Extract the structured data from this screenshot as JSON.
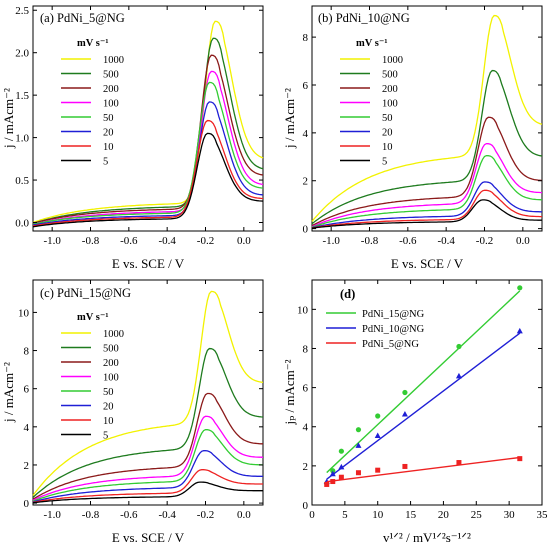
{
  "chart_data": [
    {
      "id": "a",
      "type": "line",
      "title": "(a) PdNi_5@NG",
      "xlabel": "E vs. SCE / V",
      "ylabel": "j / mAcm⁻²",
      "xlim": [
        -1.1,
        0.1
      ],
      "ylim": [
        -0.1,
        2.55
      ],
      "xticks": [
        -1.0,
        -0.8,
        -0.6,
        -0.4,
        -0.2,
        0.0
      ],
      "xtick_labels": [
        "-1.0",
        "-0.8",
        "-0.6",
        "-0.4",
        "-0.2",
        "0.0"
      ],
      "yticks": [
        0.0,
        0.5,
        1.0,
        1.5,
        2.0,
        2.5
      ],
      "ytick_labels": [
        "0.0",
        "0.5",
        "1.0",
        "1.5",
        "2.0",
        "2.5"
      ],
      "legend_title": "mV s⁻¹",
      "legend_position": "upper-left",
      "series": [
        {
          "name": "1000",
          "color": "#f2f200",
          "y_at_start": 0.0,
          "y_plateau": 0.24,
          "peak_x": -0.15,
          "peak_y": 2.37,
          "y_end": 0.74
        },
        {
          "name": "500",
          "color": "#1e7b1e",
          "y_at_start": -0.01,
          "y_plateau": 0.2,
          "peak_x": -0.16,
          "peak_y": 2.17,
          "y_end": 0.62
        },
        {
          "name": "200",
          "color": "#8b1a1a",
          "y_at_start": -0.01,
          "y_plateau": 0.17,
          "peak_x": -0.17,
          "peak_y": 1.97,
          "y_end": 0.55
        },
        {
          "name": "100",
          "color": "#ff00ff",
          "y_at_start": -0.02,
          "y_plateau": 0.14,
          "peak_x": -0.17,
          "peak_y": 1.78,
          "y_end": 0.44
        },
        {
          "name": "50",
          "color": "#33cc33",
          "y_at_start": -0.02,
          "y_plateau": 0.12,
          "peak_x": -0.18,
          "peak_y": 1.65,
          "y_end": 0.4
        },
        {
          "name": "20",
          "color": "#1f1fd6",
          "y_at_start": -0.03,
          "y_plateau": 0.09,
          "peak_x": -0.18,
          "peak_y": 1.42,
          "y_end": 0.32
        },
        {
          "name": "10",
          "color": "#ee2222",
          "y_at_start": -0.04,
          "y_plateau": 0.07,
          "peak_x": -0.19,
          "peak_y": 1.2,
          "y_end": 0.28
        },
        {
          "name": "5",
          "color": "#000000",
          "y_at_start": -0.05,
          "y_plateau": 0.05,
          "peak_x": -0.19,
          "peak_y": 1.05,
          "y_end": 0.25
        }
      ]
    },
    {
      "id": "b",
      "type": "line",
      "title": "(b) PdNi_10@NG",
      "xlabel": "E vs. SCE / V",
      "ylabel": "j / mAcm⁻²",
      "xlim": [
        -1.1,
        0.1
      ],
      "ylim": [
        -0.1,
        9.3
      ],
      "xticks": [
        -1.0,
        -0.8,
        -0.6,
        -0.4,
        -0.2,
        0.0
      ],
      "xtick_labels": [
        "-1.0",
        "-0.8",
        "-0.6",
        "-0.4",
        "-0.2",
        "0.0"
      ],
      "yticks": [
        0,
        2,
        4,
        6,
        8
      ],
      "ytick_labels": [
        "0",
        "2",
        "4",
        "6",
        "8"
      ],
      "legend_title": "mV s⁻¹",
      "legend_position": "upper-left",
      "series": [
        {
          "name": "1000",
          "color": "#f2f200",
          "y_at_start": 0.3,
          "y_plateau": 3.2,
          "peak_x": -0.15,
          "peak_y": 8.9,
          "y_end": 4.3
        },
        {
          "name": "500",
          "color": "#1e7b1e",
          "y_at_start": 0.2,
          "y_plateau": 2.1,
          "peak_x": -0.16,
          "peak_y": 6.6,
          "y_end": 3.0
        },
        {
          "name": "200",
          "color": "#8b1a1a",
          "y_at_start": 0.12,
          "y_plateau": 1.4,
          "peak_x": -0.18,
          "peak_y": 4.65,
          "y_end": 2.0
        },
        {
          "name": "100",
          "color": "#ff00ff",
          "y_at_start": 0.08,
          "y_plateau": 1.1,
          "peak_x": -0.19,
          "peak_y": 3.55,
          "y_end": 1.5
        },
        {
          "name": "50",
          "color": "#33cc33",
          "y_at_start": 0.06,
          "y_plateau": 0.85,
          "peak_x": -0.19,
          "peak_y": 3.05,
          "y_end": 1.2
        },
        {
          "name": "20",
          "color": "#1f1fd6",
          "y_at_start": 0.04,
          "y_plateau": 0.55,
          "peak_x": -0.2,
          "peak_y": 1.95,
          "y_end": 0.7
        },
        {
          "name": "10",
          "color": "#ee2222",
          "y_at_start": 0.03,
          "y_plateau": 0.4,
          "peak_x": -0.2,
          "peak_y": 1.6,
          "y_end": 0.5
        },
        {
          "name": "5",
          "color": "#000000",
          "y_at_start": 0.02,
          "y_plateau": 0.3,
          "peak_x": -0.21,
          "peak_y": 1.2,
          "y_end": 0.35
        }
      ]
    },
    {
      "id": "c",
      "type": "line",
      "title": "(c) PdNi_15@NG",
      "xlabel": "E vs. SCE / V",
      "ylabel": "j / mAcm⁻²",
      "xlim": [
        -1.1,
        0.1
      ],
      "ylim": [
        -0.1,
        11.7
      ],
      "xticks": [
        -1.0,
        -0.8,
        -0.6,
        -0.4,
        -0.2,
        0.0
      ],
      "xtick_labels": [
        "-1.0",
        "-0.8",
        "-0.6",
        "-0.4",
        "-0.2",
        "0.0"
      ],
      "yticks": [
        0,
        2,
        4,
        6,
        8,
        10
      ],
      "ytick_labels": [
        "0",
        "2",
        "4",
        "6",
        "8",
        "10"
      ],
      "legend_title": "mV s⁻¹",
      "legend_position": "upper-left",
      "series": [
        {
          "name": "1000",
          "color": "#f2f200",
          "y_at_start": 0.4,
          "y_plateau": 4.4,
          "peak_x": -0.17,
          "peak_y": 11.1,
          "y_end": 6.3
        },
        {
          "name": "500",
          "color": "#1e7b1e",
          "y_at_start": 0.3,
          "y_plateau": 3.0,
          "peak_x": -0.18,
          "peak_y": 8.1,
          "y_end": 4.5
        },
        {
          "name": "200",
          "color": "#8b1a1a",
          "y_at_start": 0.2,
          "y_plateau": 2.0,
          "peak_x": -0.19,
          "peak_y": 5.75,
          "y_end": 3.1
        },
        {
          "name": "100",
          "color": "#ff00ff",
          "y_at_start": 0.15,
          "y_plateau": 1.5,
          "peak_x": -0.2,
          "peak_y": 4.55,
          "y_end": 2.4
        },
        {
          "name": "50",
          "color": "#33cc33",
          "y_at_start": 0.1,
          "y_plateau": 1.2,
          "peak_x": -0.2,
          "peak_y": 3.85,
          "y_end": 2.0
        },
        {
          "name": "20",
          "color": "#1f1fd6",
          "y_at_start": 0.06,
          "y_plateau": 0.85,
          "peak_x": -0.21,
          "peak_y": 2.75,
          "y_end": 1.4
        },
        {
          "name": "10",
          "color": "#ee2222",
          "y_at_start": 0.04,
          "y_plateau": 0.55,
          "peak_x": -0.22,
          "peak_y": 1.75,
          "y_end": 1.0
        },
        {
          "name": "5",
          "color": "#000000",
          "y_at_start": 0.02,
          "y_plateau": 0.35,
          "peak_x": -0.23,
          "peak_y": 1.1,
          "y_end": 0.65
        }
      ]
    },
    {
      "id": "d",
      "type": "scatter",
      "title": "(d)",
      "xlabel": "v¹ᐟ² / mV¹ᐟ²s⁻¹ᐟ²",
      "ylabel": "jₚ / mAcm⁻²",
      "xlim": [
        0,
        35
      ],
      "ylim": [
        0,
        11.5
      ],
      "xticks": [
        0,
        5,
        10,
        15,
        20,
        25,
        30,
        35
      ],
      "xtick_labels": [
        "0",
        "5",
        "10",
        "15",
        "20",
        "25",
        "30",
        "35"
      ],
      "yticks": [
        0,
        2,
        4,
        6,
        8,
        10
      ],
      "ytick_labels": [
        "0",
        "2",
        "4",
        "6",
        "8",
        "10"
      ],
      "legend_position": "upper-left",
      "x": [
        2.24,
        3.16,
        4.47,
        7.07,
        10.0,
        14.14,
        22.36,
        31.62
      ],
      "series": [
        {
          "name": "PdNi_15@NG",
          "color": "#33cc33",
          "marker": "circle",
          "values": [
            1.1,
            1.75,
            2.75,
            3.85,
            4.55,
            5.75,
            8.1,
            11.1
          ],
          "fit": [
            0.95,
            0.316
          ]
        },
        {
          "name": "PdNi_10@NG",
          "color": "#1f1fd6",
          "marker": "triangle",
          "values": [
            1.2,
            1.6,
            1.95,
            3.05,
            3.55,
            4.65,
            6.6,
            8.9
          ],
          "fit": [
            0.75,
            0.254
          ]
        },
        {
          "name": "PdNi_5@NG",
          "color": "#ee2222",
          "marker": "square",
          "values": [
            1.05,
            1.2,
            1.42,
            1.65,
            1.78,
            1.97,
            2.17,
            2.37
          ],
          "fit": [
            1.1,
            0.042
          ]
        }
      ]
    }
  ]
}
